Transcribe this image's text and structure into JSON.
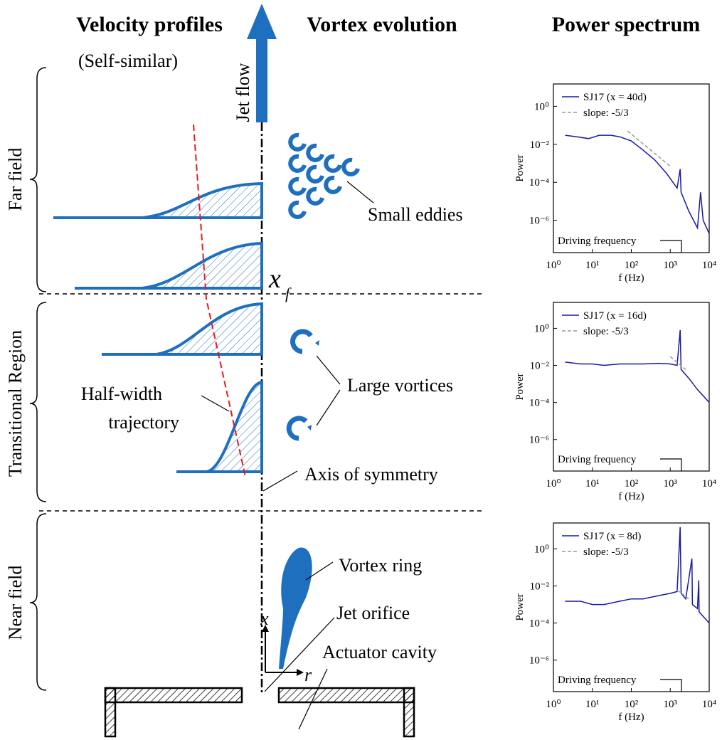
{
  "diagram": {
    "headers": [
      "Velocity profiles",
      "Vortex evolution",
      "Power spectrum"
    ],
    "subtitle": "(Self-similar)",
    "jet_label": "Jet flow",
    "regions": [
      "Far field",
      "Transitional Region",
      "Near field"
    ],
    "labels": {
      "small_eddies": "Small eddies",
      "large_vortices": "Large vortices",
      "half_width_1": "Half-width",
      "half_width_2": "trajectory",
      "axis": "Axis of symmetry",
      "vortex_ring": "Vortex ring",
      "orifice": "Jet orifice",
      "cavity": "Actuator cavity",
      "xf": "x",
      "xf_sub": "f",
      "x_axis": "x",
      "r_axis": "r"
    }
  },
  "chart_data": [
    {
      "type": "line",
      "log": true,
      "ylabel": "Power",
      "xlabel": "f (Hz)",
      "annotation": "Driving frequency",
      "xlim": [
        1,
        10000
      ],
      "ylim": [
        2e-08,
        15
      ],
      "xticks": [
        {
          "value": 1,
          "label": "10⁰"
        },
        {
          "value": 10,
          "label": "10¹"
        },
        {
          "value": 100,
          "label": "10²"
        },
        {
          "value": 1000,
          "label": "10³"
        },
        {
          "value": 10000,
          "label": "10⁴"
        }
      ],
      "yticks": [
        {
          "value": 1e-06,
          "label": "10⁻⁶"
        },
        {
          "value": 0.0001,
          "label": "10⁻⁴"
        },
        {
          "value": 0.01,
          "label": "10⁻²"
        },
        {
          "value": 1,
          "label": "10⁰"
        }
      ],
      "series": [
        {
          "name": "SJ17 (x = 40d)",
          "color": "#1a1aa0",
          "x": [
            2,
            4,
            8,
            15,
            30,
            50,
            100,
            200,
            400,
            800,
            1500,
            1800,
            1900,
            3000,
            5000,
            6000,
            7000,
            10000
          ],
          "values": [
            0.03,
            0.025,
            0.02,
            0.03,
            0.03,
            0.025,
            0.015,
            0.005,
            0.0015,
            0.0003,
            5e-05,
            0.0005,
            3e-05,
            3e-06,
            4e-07,
            3e-05,
            1e-06,
            2e-07
          ]
        },
        {
          "name": "slope: -5/3",
          "color": "#999999",
          "dashed": true,
          "x": [
            80,
            1000
          ],
          "values": [
            0.05,
            0.0007
          ]
        }
      ]
    },
    {
      "type": "line",
      "log": true,
      "ylabel": "Power",
      "xlabel": "f (Hz)",
      "annotation": "Driving frequency",
      "xlim": [
        1,
        10000
      ],
      "ylim": [
        2e-08,
        25
      ],
      "xticks": [
        {
          "value": 1,
          "label": "10⁰"
        },
        {
          "value": 10,
          "label": "10¹"
        },
        {
          "value": 100,
          "label": "10²"
        },
        {
          "value": 1000,
          "label": "10³"
        },
        {
          "value": 10000,
          "label": "10⁴"
        }
      ],
      "yticks": [
        {
          "value": 1e-06,
          "label": "10⁻⁶"
        },
        {
          "value": 0.0001,
          "label": "10⁻⁴"
        },
        {
          "value": 0.01,
          "label": "10⁻²"
        },
        {
          "value": 1,
          "label": "10⁰"
        }
      ],
      "series": [
        {
          "name": "SJ17 (x = 16d)",
          "color": "#1a1aa0",
          "x": [
            2,
            5,
            10,
            20,
            50,
            100,
            200,
            500,
            1000,
            1500,
            1800,
            1900,
            3000,
            5000,
            10000
          ],
          "values": [
            0.015,
            0.012,
            0.012,
            0.01,
            0.012,
            0.012,
            0.012,
            0.013,
            0.012,
            0.01,
            0.8,
            0.006,
            0.002,
            0.0005,
            0.0001
          ]
        },
        {
          "name": "slope: -5/3",
          "color": "#999999",
          "dashed": true,
          "x": [
            1000,
            2500
          ],
          "values": [
            0.03,
            0.006
          ]
        }
      ]
    },
    {
      "type": "line",
      "log": true,
      "ylabel": "Power",
      "xlabel": "f (Hz)",
      "annotation": "Driving frequency",
      "xlim": [
        1,
        10000
      ],
      "ylim": [
        2e-08,
        25
      ],
      "xticks": [
        {
          "value": 1,
          "label": "10⁰"
        },
        {
          "value": 10,
          "label": "10¹"
        },
        {
          "value": 100,
          "label": "10²"
        },
        {
          "value": 1000,
          "label": "10³"
        },
        {
          "value": 10000,
          "label": "10⁴"
        }
      ],
      "yticks": [
        {
          "value": 1e-06,
          "label": "10⁻⁶"
        },
        {
          "value": 0.0001,
          "label": "10⁻⁴"
        },
        {
          "value": 0.01,
          "label": "10⁻²"
        },
        {
          "value": 1,
          "label": "10⁰"
        }
      ],
      "series": [
        {
          "name": "SJ17 (x = 8d)",
          "color": "#1a1aa0",
          "x": [
            2,
            5,
            10,
            20,
            50,
            100,
            200,
            500,
            1000,
            1500,
            1800,
            1900,
            2500,
            3600,
            3700,
            5000,
            5400,
            5500,
            10000
          ],
          "values": [
            0.0015,
            0.0015,
            0.001,
            0.001,
            0.0015,
            0.002,
            0.002,
            0.003,
            0.004,
            0.005,
            15,
            0.004,
            0.002,
            0.3,
            0.001,
            0.0006,
            0.02,
            0.0004,
            0.0001
          ]
        },
        {
          "name": "slope: -5/3",
          "color": "#999999",
          "dashed": true,
          "x": [
            1500,
            3000
          ],
          "values": [
            0.006,
            0.002
          ]
        }
      ]
    }
  ]
}
